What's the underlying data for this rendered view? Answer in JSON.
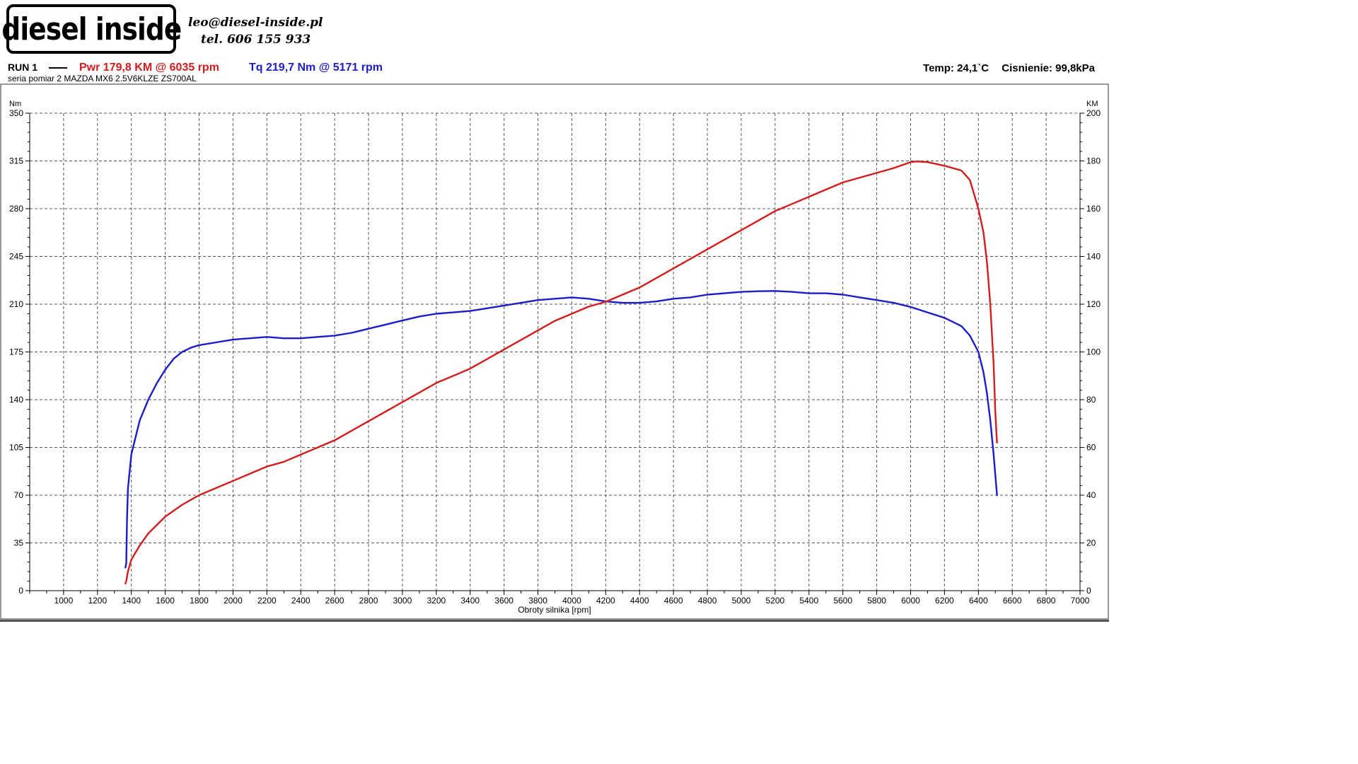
{
  "header": {
    "logo_text": "diesel inside",
    "email": "leo@diesel-inside.pl",
    "phone": "tel. 606 155 933",
    "run_label": "RUN 1",
    "power_summary": "Pwr  179,8 KM @ 6035 rpm",
    "torque_summary": "Tq 219,7 Nm @ 5171 rpm",
    "temp": "Temp: 24,1`C",
    "pressure": "Cisnienie: 99,8kPa",
    "subtitle": "seria pomiar 2 MAZDA MX6 2.5V6KLZE ZS700AL"
  },
  "chart_data": {
    "type": "line",
    "xlabel": "Obroty silnika [rpm]",
    "ylabel_left": "Nm",
    "ylabel_right": "KM",
    "xlim": [
      800,
      7000
    ],
    "ylim_left": [
      0,
      350
    ],
    "ylim_right": [
      0,
      200
    ],
    "x_ticks": [
      1000,
      1200,
      1400,
      1600,
      1800,
      2000,
      2200,
      2400,
      2600,
      2800,
      3000,
      3200,
      3400,
      3600,
      3800,
      4000,
      4200,
      4400,
      4600,
      4800,
      5000,
      5200,
      5400,
      5600,
      5800,
      6000,
      6200,
      6400,
      6600,
      6800,
      7000
    ],
    "y_ticks_left": [
      0,
      35,
      70,
      105,
      140,
      175,
      210,
      245,
      280,
      315,
      350
    ],
    "y_ticks_right": [
      0,
      20,
      40,
      60,
      80,
      100,
      120,
      140,
      160,
      180,
      200
    ],
    "grid": true,
    "colors": {
      "power": "#d41c1c",
      "torque": "#1c1cc8"
    },
    "series": [
      {
        "name": "Tq",
        "axis": "left",
        "points": [
          [
            1365,
            17
          ],
          [
            1370,
            20
          ],
          [
            1375,
            55
          ],
          [
            1380,
            75
          ],
          [
            1400,
            100
          ],
          [
            1450,
            125
          ],
          [
            1500,
            140
          ],
          [
            1550,
            152
          ],
          [
            1600,
            162
          ],
          [
            1650,
            170
          ],
          [
            1700,
            175
          ],
          [
            1750,
            178
          ],
          [
            1800,
            180
          ],
          [
            1900,
            182
          ],
          [
            2000,
            184
          ],
          [
            2100,
            185
          ],
          [
            2200,
            186
          ],
          [
            2300,
            185
          ],
          [
            2400,
            185
          ],
          [
            2500,
            186
          ],
          [
            2600,
            187
          ],
          [
            2700,
            189
          ],
          [
            2800,
            192
          ],
          [
            2900,
            195
          ],
          [
            3000,
            198
          ],
          [
            3100,
            201
          ],
          [
            3200,
            203
          ],
          [
            3300,
            204
          ],
          [
            3400,
            205
          ],
          [
            3500,
            207
          ],
          [
            3600,
            209
          ],
          [
            3700,
            211
          ],
          [
            3800,
            213
          ],
          [
            3900,
            214
          ],
          [
            4000,
            215
          ],
          [
            4100,
            214
          ],
          [
            4200,
            212
          ],
          [
            4300,
            211
          ],
          [
            4400,
            211
          ],
          [
            4500,
            212
          ],
          [
            4600,
            214
          ],
          [
            4700,
            215
          ],
          [
            4800,
            217
          ],
          [
            4900,
            218
          ],
          [
            5000,
            219
          ],
          [
            5100,
            219.5
          ],
          [
            5200,
            219.7
          ],
          [
            5300,
            219
          ],
          [
            5400,
            218
          ],
          [
            5500,
            218
          ],
          [
            5600,
            217
          ],
          [
            5700,
            215
          ],
          [
            5800,
            213
          ],
          [
            5900,
            211
          ],
          [
            6000,
            208
          ],
          [
            6100,
            204
          ],
          [
            6200,
            200
          ],
          [
            6300,
            194
          ],
          [
            6350,
            187
          ],
          [
            6400,
            175
          ],
          [
            6430,
            160
          ],
          [
            6450,
            145
          ],
          [
            6470,
            125
          ],
          [
            6490,
            100
          ],
          [
            6500,
            85
          ],
          [
            6510,
            70
          ]
        ]
      },
      {
        "name": "Pwr",
        "axis": "right",
        "points": [
          [
            1365,
            3
          ],
          [
            1370,
            4
          ],
          [
            1380,
            8
          ],
          [
            1400,
            13
          ],
          [
            1450,
            19
          ],
          [
            1500,
            24
          ],
          [
            1600,
            31
          ],
          [
            1700,
            36
          ],
          [
            1800,
            40
          ],
          [
            1900,
            43
          ],
          [
            2000,
            46
          ],
          [
            2100,
            49
          ],
          [
            2200,
            52
          ],
          [
            2300,
            54
          ],
          [
            2400,
            57
          ],
          [
            2500,
            60
          ],
          [
            2600,
            63
          ],
          [
            2700,
            67
          ],
          [
            2800,
            71
          ],
          [
            2900,
            75
          ],
          [
            3000,
            79
          ],
          [
            3100,
            83
          ],
          [
            3200,
            87
          ],
          [
            3300,
            90
          ],
          [
            3400,
            93
          ],
          [
            3500,
            97
          ],
          [
            3600,
            101
          ],
          [
            3700,
            105
          ],
          [
            3800,
            109
          ],
          [
            3900,
            113
          ],
          [
            4000,
            116
          ],
          [
            4100,
            119
          ],
          [
            4200,
            121
          ],
          [
            4300,
            124
          ],
          [
            4400,
            127
          ],
          [
            4500,
            131
          ],
          [
            4600,
            135
          ],
          [
            4700,
            139
          ],
          [
            4800,
            143
          ],
          [
            4900,
            147
          ],
          [
            5000,
            151
          ],
          [
            5100,
            155
          ],
          [
            5200,
            159
          ],
          [
            5300,
            162
          ],
          [
            5400,
            165
          ],
          [
            5500,
            168
          ],
          [
            5600,
            171
          ],
          [
            5700,
            173
          ],
          [
            5800,
            175
          ],
          [
            5900,
            177
          ],
          [
            6000,
            179.5
          ],
          [
            6035,
            179.8
          ],
          [
            6100,
            179.5
          ],
          [
            6200,
            178
          ],
          [
            6300,
            176
          ],
          [
            6350,
            172
          ],
          [
            6400,
            160
          ],
          [
            6430,
            150
          ],
          [
            6450,
            138
          ],
          [
            6470,
            120
          ],
          [
            6490,
            95
          ],
          [
            6500,
            75
          ],
          [
            6510,
            62
          ]
        ]
      }
    ]
  }
}
